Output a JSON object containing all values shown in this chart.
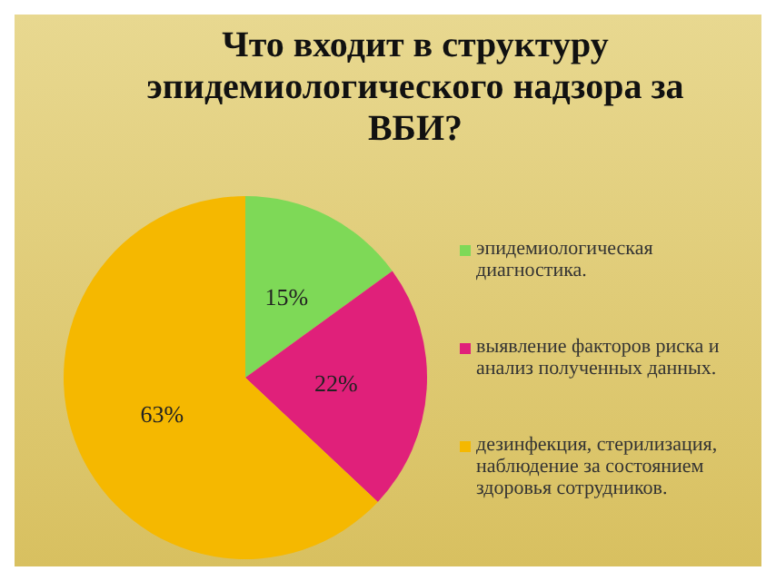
{
  "chart_data": {
    "type": "pie",
    "title": "Что входит в структуру эпидемиологического надзора за ВБИ?",
    "categories": [
      "эпидемиологическая диагностика.",
      "выявление факторов риска и анализ полученных данных.",
      "дезинфекция, стерилизация, наблюдение за состоянием здоровья сотрудников."
    ],
    "values": [
      15,
      22,
      63
    ],
    "colors": [
      "#7ed957",
      "#e0207a",
      "#f5b800"
    ],
    "value_labels": [
      "15%",
      "22%",
      "63%"
    ],
    "legend": "right"
  }
}
